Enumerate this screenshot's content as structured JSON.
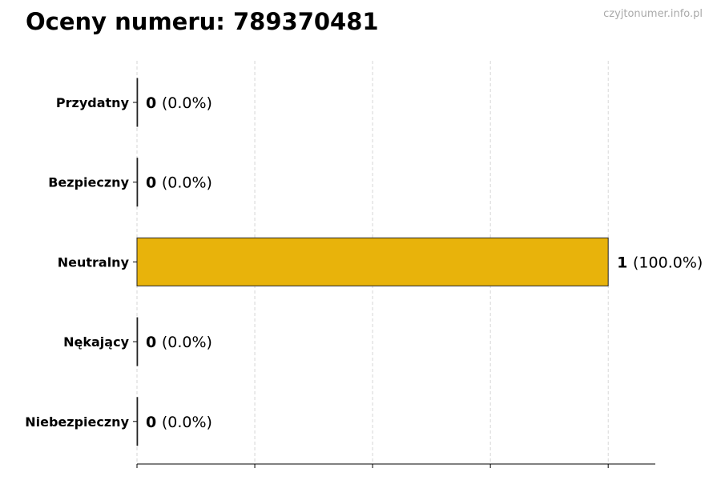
{
  "watermark": "czyjtonumer.info.pl",
  "chart_data": {
    "type": "bar",
    "orientation": "horizontal",
    "title": "Oceny numeru: 789370481",
    "xlabel": "",
    "ylabel": "",
    "categories": [
      "Przydatny",
      "Bezpieczny",
      "Neutralny",
      "Nękający",
      "Niebezpieczny"
    ],
    "values": [
      0,
      0,
      1,
      0,
      0
    ],
    "percent_labels": [
      "(0.0%)",
      "(0.0%)",
      "(100.0%)",
      "(0.0%)",
      "(0.0%)"
    ],
    "xlim": [
      0,
      1.1
    ],
    "x_ticks": [
      0,
      0.25,
      0.5,
      0.75,
      1.0
    ],
    "grid": "vertical dashed",
    "bar_color": "#E8B30B"
  }
}
